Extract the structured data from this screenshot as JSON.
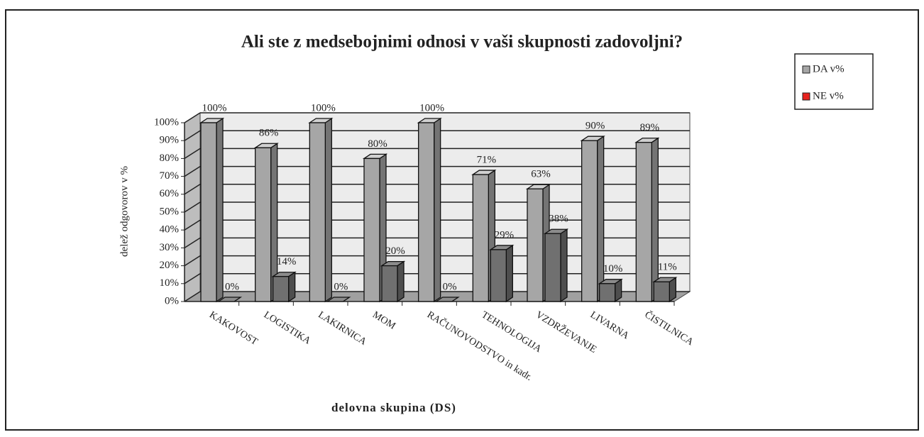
{
  "chart_data": {
    "type": "bar3d",
    "title": "Ali ste z medsebojnimi odnosi v vaši skupnosti zadovoljni?",
    "x_label": "delovna skupina (DS)",
    "y_label": "delež odgovorov v %",
    "categories": [
      "KAKOVOST",
      "LOGISTIKA",
      "LAKIRNICA",
      "MOM",
      "RAČUNOVODSTVO in kadr.",
      "TEHNOLOGIJA",
      "VZDRŽEVANJE",
      "LIVARNA",
      "ČISTILNICA"
    ],
    "series": [
      {
        "name": "DA v%",
        "color": "#a6a6a6",
        "legend_color": "#a6a6a6",
        "values": [
          100,
          86,
          100,
          80,
          100,
          71,
          63,
          90,
          89
        ],
        "value_labels": [
          "100%",
          "86%",
          "100%",
          "80%",
          "100%",
          "71%",
          "63%",
          "90%",
          "89%"
        ]
      },
      {
        "name": "NE v%",
        "color": "#707070",
        "legend_color": "#e8231f",
        "values": [
          0,
          14,
          0,
          20,
          0,
          29,
          38,
          10,
          11
        ],
        "value_labels": [
          "0%",
          "14%",
          "0%",
          "20%",
          "0%",
          "29%",
          "38%",
          "10%",
          "11%"
        ]
      }
    ],
    "ylim": [
      0,
      100
    ],
    "yticks": [
      {
        "value": 0,
        "label": "0%"
      },
      {
        "value": 10,
        "label": "10%"
      },
      {
        "value": 20,
        "label": "20%"
      },
      {
        "value": 30,
        "label": "30%"
      },
      {
        "value": 40,
        "label": "40%"
      },
      {
        "value": 50,
        "label": "50%"
      },
      {
        "value": 60,
        "label": "60%"
      },
      {
        "value": 70,
        "label": "70%"
      },
      {
        "value": 80,
        "label": "80%"
      },
      {
        "value": 90,
        "label": "90%"
      },
      {
        "value": 100,
        "label": "100%"
      }
    ],
    "grid": true,
    "legend": "top-right"
  }
}
